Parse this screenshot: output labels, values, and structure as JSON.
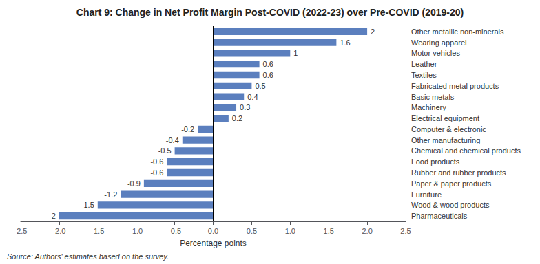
{
  "chart_data": {
    "type": "bar",
    "orientation": "horizontal",
    "title": "Chart 9: Change in Net Profit Margin Post-COVID (2022-23) over Pre-COVID (2019-20)",
    "xlabel": "Percentage points",
    "categories": [
      "Pharmaceuticals",
      "Wood & wood products",
      "Furniture",
      "Paper & paper products",
      "Rubber and rubber products",
      "Food products",
      "Chemical and chemical products",
      "Other manufacturing",
      "Computer & electronic",
      "Electrical equipment",
      "Machinery",
      "Basic metals",
      "Fabricated metal products",
      "Textiles",
      "Leather",
      "Motor vehicles",
      "Wearing apparel",
      "Other metallic non-minerals"
    ],
    "values": [
      -2.0,
      -1.5,
      -1.2,
      -0.9,
      -0.6,
      -0.6,
      -0.5,
      -0.4,
      -0.2,
      0.2,
      0.3,
      0.4,
      0.5,
      0.6,
      0.6,
      1.0,
      1.6,
      2.0
    ],
    "color": "#5b7fbe",
    "xlim": [
      -2.5,
      2.5
    ],
    "xticks": [
      -2.5,
      {
        "value": -2.0,
        "label": "-2.0"
      },
      -1.5,
      {
        "value": -1.0,
        "label": "-1.0"
      },
      -0.5,
      {
        "value": 0.0,
        "label": "0.0"
      },
      0.5,
      {
        "value": 1.0,
        "label": "1.0"
      },
      1.5,
      {
        "value": 2.0,
        "label": "2.0"
      },
      2.5
    ],
    "grid": false,
    "data_labels": true,
    "annotations": [
      "Source: Authors' estimates based on the survey."
    ]
  }
}
